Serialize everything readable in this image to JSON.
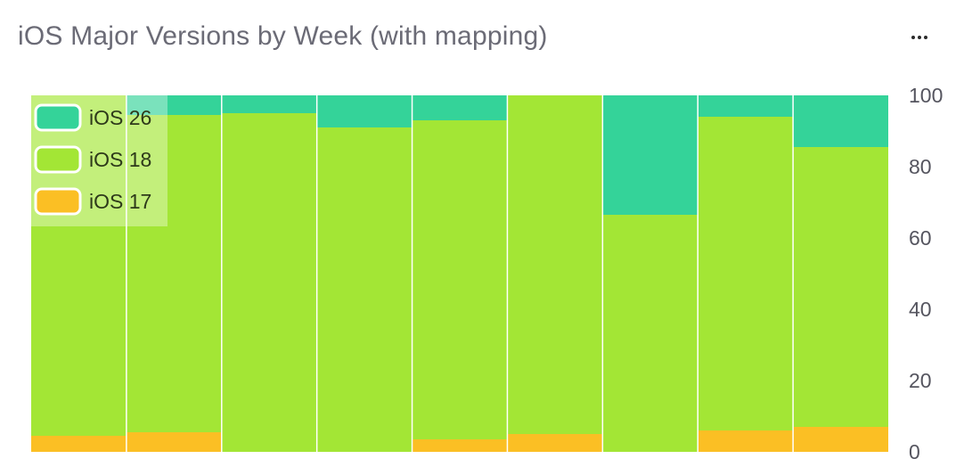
{
  "header": {
    "title": "iOS Major Versions by Week (with mapping)",
    "menu_icon": "more-horizontal-icon"
  },
  "chart_data": {
    "type": "bar",
    "stacked": true,
    "categories": [
      "",
      "",
      "",
      "",
      "",
      "",
      "",
      "",
      ""
    ],
    "series": [
      {
        "name": "iOS 17",
        "color": "#fbbf24",
        "values": [
          4.5,
          5.5,
          0,
          0,
          3.5,
          5,
          0,
          6,
          7
        ]
      },
      {
        "name": "iOS 18",
        "color": "#a3e635",
        "values": [
          95.5,
          89,
          95,
          91,
          89.5,
          95,
          66.5,
          88,
          78.5
        ]
      },
      {
        "name": "iOS 26",
        "color": "#34d399",
        "values": [
          0,
          5.5,
          5,
          9,
          7,
          0,
          33.5,
          6,
          14.5
        ]
      }
    ],
    "yaxis": {
      "min": 0,
      "max": 100,
      "ticks": [
        0,
        20,
        40,
        60,
        80,
        100
      ],
      "position": "right"
    },
    "legend": {
      "placement": "top-left",
      "order": [
        "iOS 26",
        "iOS 18",
        "iOS 17"
      ]
    },
    "grid": false
  }
}
